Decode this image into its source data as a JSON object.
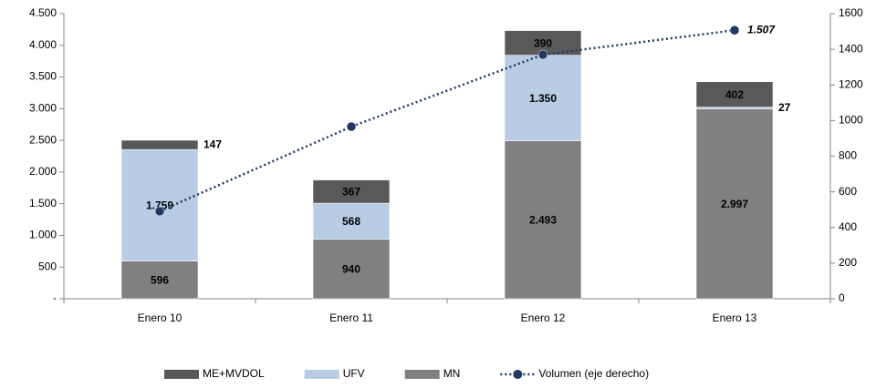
{
  "chart_data": {
    "type": "bar",
    "categories": [
      "Enero 10",
      "Enero 11",
      "Enero 12",
      "Enero 13"
    ],
    "series": [
      {
        "name": "ME+MVDOL",
        "color": "#595959",
        "values": [
          147,
          367,
          390,
          402
        ],
        "value_labels": [
          "147",
          "367",
          "390",
          "402"
        ]
      },
      {
        "name": "UFV",
        "color": "#b8cce4",
        "values": [
          1759,
          568,
          1350,
          27
        ],
        "value_labels": [
          "1.759",
          "568",
          "1.350",
          "27"
        ]
      },
      {
        "name": "MN",
        "color": "#808080",
        "values": [
          596,
          940,
          2493,
          2997
        ],
        "value_labels": [
          "596",
          "940",
          "2.493",
          "2.997"
        ]
      },
      {
        "name": "Volumen (eje derecho)",
        "type": "line",
        "axis": "y2",
        "color": "#1f3864",
        "values": [
          491,
          966,
          1370,
          1507
        ],
        "value_labels": [
          null,
          null,
          null,
          "1.507"
        ]
      }
    ],
    "ylim": [
      0,
      4500
    ],
    "yticks": [
      {
        "value": 0,
        "label": "-"
      },
      500,
      {
        "value": 1000,
        "label": "1.000"
      },
      {
        "value": 1500,
        "label": "1.500"
      },
      {
        "value": 2000,
        "label": "2.000"
      },
      {
        "value": 2500,
        "label": "2.500"
      },
      {
        "value": 3000,
        "label": "3.000"
      },
      {
        "value": 3500,
        "label": "3.500"
      },
      {
        "value": 4000,
        "label": "4.000"
      },
      {
        "value": 4500,
        "label": "4.500"
      }
    ],
    "y2lim": [
      0,
      1600
    ],
    "y2ticks": [
      0,
      200,
      400,
      600,
      800,
      1000,
      1200,
      1400,
      1600
    ],
    "grid": false,
    "legend": "bottom"
  }
}
